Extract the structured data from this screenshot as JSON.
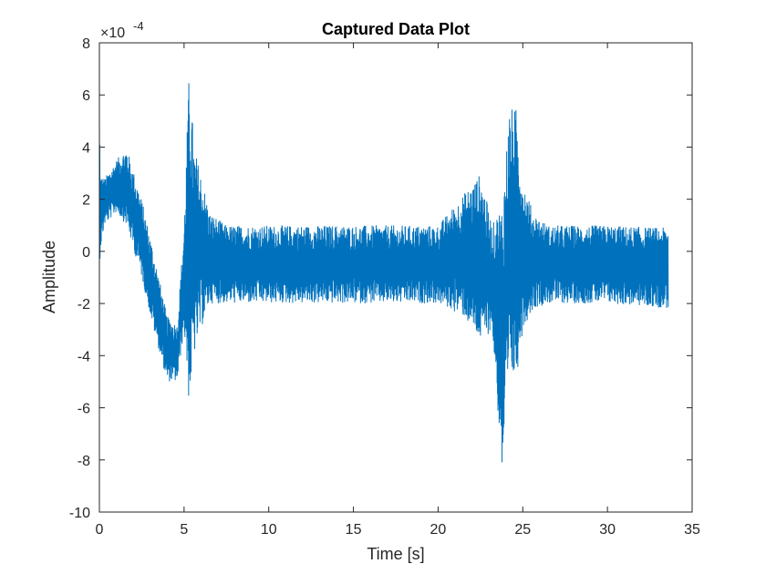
{
  "chart_data": {
    "type": "line",
    "title": "Captured Data Plot",
    "xlabel": "Time [s]",
    "ylabel": "Amplitude",
    "xlim": [
      0,
      35
    ],
    "ylim": [
      -0.001,
      0.0008
    ],
    "y_exponent_label": "×10^-4",
    "y_exponent_base": "×10",
    "y_exponent_power": "-4",
    "x_ticks": [
      0,
      5,
      10,
      15,
      20,
      25,
      30,
      35
    ],
    "x_tick_labels": [
      "0",
      "5",
      "10",
      "15",
      "20",
      "25",
      "30",
      "35"
    ],
    "y_ticks": [
      -0.001,
      -0.0008,
      -0.0006,
      -0.0004,
      -0.0002,
      0,
      0.0002,
      0.0004,
      0.0006,
      0.0008
    ],
    "y_tick_labels": [
      "-10",
      "-8",
      "-6",
      "-4",
      "-2",
      "0",
      "2",
      "4",
      "6",
      "8"
    ],
    "grid": false,
    "series": [
      {
        "color": "#0072BD",
        "sample_interval": 0.1,
        "envelope_time": [
          0,
          0.05,
          0.3,
          1.0,
          1.6,
          2.5,
          3.2,
          4.0,
          4.6,
          5.0,
          5.3,
          5.6,
          6.0,
          6.5,
          7.5,
          10,
          15,
          20,
          21.5,
          22.5,
          23.2,
          23.8,
          24.2,
          24.6,
          25.0,
          25.6,
          26.5,
          28,
          30,
          33.6
        ],
        "envelope_upper": [
          0.00063,
          0.0003,
          0.00028,
          0.00035,
          0.0004,
          0.0002,
          0.0,
          -0.00025,
          -0.00028,
          0.0001,
          0.0007,
          0.0004,
          0.0003,
          0.00015,
          0.0001,
          0.0001,
          0.0001,
          0.0001,
          0.00022,
          0.0003,
          0.0001,
          0.0002,
          0.00055,
          0.00055,
          0.00028,
          0.00015,
          0.0001,
          0.0001,
          0.0001,
          9e-05
        ],
        "envelope_lower": [
          -0.0001,
          0.0,
          0.0001,
          0.00015,
          0.0001,
          -0.0001,
          -0.0003,
          -0.0005,
          -0.0005,
          -0.0003,
          -0.0006,
          -0.0004,
          -0.0003,
          -0.0002,
          -0.0002,
          -0.0002,
          -0.0002,
          -0.0002,
          -0.00025,
          -0.00035,
          -0.0003,
          -0.00088,
          -0.0005,
          -0.0005,
          -0.0003,
          -0.00022,
          -0.0002,
          -0.0002,
          -0.0002,
          -0.00022
        ]
      }
    ]
  }
}
